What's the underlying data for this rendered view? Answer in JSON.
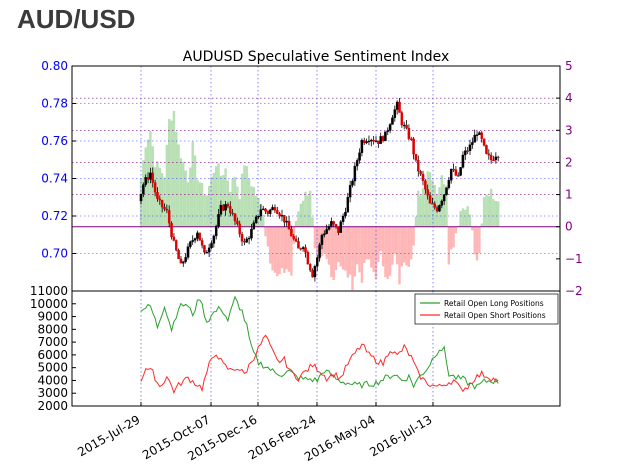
{
  "header": {
    "title": "AUD/USD"
  },
  "chart_data": {
    "type": "candlestick+bar+line",
    "title": "AUDUSD Speculative Sentiment Index",
    "colors": {
      "price_axis": "#0000ff",
      "ssi_axis": "#800080",
      "long_positions": "#2ca02c",
      "short_positions": "#ff2a2a",
      "ssi_positive": "#b9e0b5",
      "ssi_negative": "#ffb6b6",
      "grid": "#3333ff",
      "zero_line": "#800080"
    },
    "x_ticks": [
      "2015-Jul-29",
      "2015-Oct-07",
      "2015-Dec-16",
      "2016-Feb-24",
      "2016-May-04",
      "2016-Jul-13"
    ],
    "top_panel": {
      "price_ylim": [
        0.68,
        0.8
      ],
      "price_ticks": [
        "0.80",
        "0.78",
        "0.76",
        "0.74",
        "0.72",
        "0.70"
      ],
      "ssi_ylim": [
        -2,
        5
      ],
      "ssi_ticks": [
        "5",
        "4",
        "3",
        "2",
        "1",
        "0",
        "−1",
        "−2"
      ],
      "price_keypoints": [
        [
          0,
          0.728
        ],
        [
          2,
          0.737
        ],
        [
          5,
          0.743
        ],
        [
          8,
          0.728
        ],
        [
          12,
          0.722
        ],
        [
          15,
          0.705
        ],
        [
          18,
          0.693
        ],
        [
          22,
          0.705
        ],
        [
          25,
          0.712
        ],
        [
          28,
          0.699
        ],
        [
          32,
          0.71
        ],
        [
          35,
          0.724
        ],
        [
          38,
          0.726
        ],
        [
          42,
          0.714
        ],
        [
          45,
          0.705
        ],
        [
          48,
          0.712
        ],
        [
          52,
          0.724
        ],
        [
          55,
          0.722
        ],
        [
          58,
          0.725
        ],
        [
          62,
          0.718
        ],
        [
          65,
          0.71
        ],
        [
          68,
          0.702
        ],
        [
          70,
          0.705
        ],
        [
          72,
          0.696
        ],
        [
          74,
          0.689
        ],
        [
          76,
          0.698
        ],
        [
          78,
          0.71
        ],
        [
          82,
          0.716
        ],
        [
          85,
          0.712
        ],
        [
          88,
          0.724
        ],
        [
          92,
          0.745
        ],
        [
          95,
          0.76
        ],
        [
          98,
          0.762
        ],
        [
          102,
          0.76
        ],
        [
          105,
          0.763
        ],
        [
          108,
          0.774
        ],
        [
          110,
          0.779
        ],
        [
          112,
          0.77
        ],
        [
          116,
          0.76
        ],
        [
          118,
          0.748
        ],
        [
          121,
          0.738
        ],
        [
          124,
          0.726
        ],
        [
          127,
          0.724
        ],
        [
          130,
          0.732
        ],
        [
          133,
          0.745
        ],
        [
          136,
          0.74
        ],
        [
          138,
          0.752
        ],
        [
          141,
          0.757
        ],
        [
          144,
          0.765
        ],
        [
          146,
          0.76
        ],
        [
          148,
          0.752
        ],
        [
          150,
          0.75
        ],
        [
          152,
          0.753
        ]
      ],
      "ssi_keypoints": [
        [
          0,
          1.5
        ],
        [
          2,
          2.6
        ],
        [
          4,
          3.0
        ],
        [
          6,
          2.0
        ],
        [
          8,
          1.8
        ],
        [
          10,
          1.6
        ],
        [
          12,
          3.3
        ],
        [
          14,
          3.6
        ],
        [
          16,
          2.5
        ],
        [
          18,
          2.0
        ],
        [
          20,
          1.5
        ],
        [
          22,
          2.5
        ],
        [
          24,
          1.6
        ],
        [
          26,
          1.2
        ],
        [
          28,
          1.0
        ],
        [
          30,
          1.5
        ],
        [
          32,
          2.0
        ],
        [
          34,
          1.6
        ],
        [
          36,
          1.8
        ],
        [
          38,
          1.2
        ],
        [
          40,
          1.6
        ],
        [
          42,
          1.0
        ],
        [
          44,
          2.0
        ],
        [
          46,
          1.5
        ],
        [
          48,
          1.2
        ],
        [
          50,
          0.8
        ],
        [
          52,
          0.5
        ],
        [
          53,
          -0.2
        ],
        [
          55,
          -1.0
        ],
        [
          58,
          -1.6
        ],
        [
          62,
          -1.3
        ],
        [
          64,
          -1.5
        ],
        [
          66,
          0.2
        ],
        [
          68,
          0.8
        ],
        [
          70,
          1.0
        ],
        [
          72,
          1.2
        ],
        [
          74,
          -0.8
        ],
        [
          76,
          -1.2
        ],
        [
          78,
          -0.9
        ],
        [
          80,
          -1.2
        ],
        [
          82,
          -1.6
        ],
        [
          84,
          -1.0
        ],
        [
          86,
          -1.4
        ],
        [
          88,
          -1.5
        ],
        [
          90,
          -1.8
        ],
        [
          92,
          -1.2
        ],
        [
          94,
          -1.6
        ],
        [
          96,
          -1.0
        ],
        [
          98,
          -1.3
        ],
        [
          100,
          -1.5
        ],
        [
          102,
          -0.9
        ],
        [
          104,
          -1.4
        ],
        [
          106,
          -1.6
        ],
        [
          108,
          -0.9
        ],
        [
          110,
          -1.7
        ],
        [
          112,
          -1.0
        ],
        [
          114,
          -1.1
        ],
        [
          116,
          -0.6
        ],
        [
          118,
          1.0
        ],
        [
          120,
          1.2
        ],
        [
          122,
          1.8
        ],
        [
          124,
          1.6
        ],
        [
          126,
          1.1
        ],
        [
          128,
          1.5
        ],
        [
          130,
          1.4
        ],
        [
          131,
          -1.0
        ],
        [
          133,
          -0.5
        ],
        [
          136,
          0.5
        ],
        [
          138,
          0.7
        ],
        [
          140,
          0.4
        ],
        [
          142,
          -0.8
        ],
        [
          143,
          -1.2
        ],
        [
          144,
          -0.9
        ],
        [
          146,
          1.0
        ],
        [
          148,
          1.1
        ],
        [
          150,
          1.0
        ],
        [
          152,
          0.9
        ]
      ]
    },
    "bottom_panel": {
      "ylim": [
        2000,
        11000
      ],
      "y_ticks": [
        "11000",
        "10000",
        "9000",
        "8000",
        "7000",
        "6000",
        "5000",
        "4000",
        "3000",
        "2000"
      ],
      "legend": {
        "position": "top-right",
        "entries": [
          "Retail Open Long Positions",
          "Retail Open Short Positions"
        ]
      },
      "series": [
        {
          "name": "Retail Open Long Positions",
          "keypoints": [
            [
              0,
              9600
            ],
            [
              4,
              9800
            ],
            [
              7,
              8200
            ],
            [
              10,
              9900
            ],
            [
              13,
              8000
            ],
            [
              16,
              9700
            ],
            [
              19,
              10000
            ],
            [
              22,
              9200
            ],
            [
              25,
              10500
            ],
            [
              28,
              8600
            ],
            [
              31,
              9300
            ],
            [
              34,
              9700
            ],
            [
              37,
              8700
            ],
            [
              40,
              10400
            ],
            [
              43,
              9400
            ],
            [
              45,
              8200
            ],
            [
              47,
              6500
            ],
            [
              50,
              5400
            ],
            [
              54,
              5000
            ],
            [
              57,
              4600
            ],
            [
              60,
              4500
            ],
            [
              63,
              4700
            ],
            [
              66,
              4300
            ],
            [
              69,
              4100
            ],
            [
              72,
              4100
            ],
            [
              75,
              4000
            ],
            [
              78,
              4800
            ],
            [
              81,
              4400
            ],
            [
              84,
              4000
            ],
            [
              88,
              3800
            ],
            [
              92,
              3600
            ],
            [
              96,
              3700
            ],
            [
              100,
              3800
            ],
            [
              104,
              4200
            ],
            [
              108,
              4500
            ],
            [
              111,
              4000
            ],
            [
              114,
              4300
            ],
            [
              116,
              3600
            ],
            [
              119,
              4400
            ],
            [
              122,
              5000
            ],
            [
              125,
              6000
            ],
            [
              127,
              6500
            ],
            [
              129,
              6400
            ],
            [
              131,
              4500
            ],
            [
              134,
              4200
            ],
            [
              137,
              4100
            ],
            [
              140,
              3700
            ],
            [
              143,
              3500
            ],
            [
              146,
              3900
            ],
            [
              149,
              4000
            ],
            [
              152,
              3900
            ]
          ]
        },
        {
          "name": "Retail Open Short Positions",
          "keypoints": [
            [
              0,
              4000
            ],
            [
              2,
              5000
            ],
            [
              5,
              4600
            ],
            [
              8,
              3500
            ],
            [
              11,
              4300
            ],
            [
              14,
              3200
            ],
            [
              17,
              3800
            ],
            [
              20,
              4200
            ],
            [
              23,
              3800
            ],
            [
              26,
              3400
            ],
            [
              29,
              5200
            ],
            [
              32,
              6200
            ],
            [
              35,
              5200
            ],
            [
              38,
              4800
            ],
            [
              41,
              5000
            ],
            [
              44,
              4500
            ],
            [
              47,
              5500
            ],
            [
              50,
              6500
            ],
            [
              53,
              7500
            ],
            [
              55,
              6600
            ],
            [
              58,
              5500
            ],
            [
              61,
              5600
            ],
            [
              64,
              4600
            ],
            [
              67,
              4200
            ],
            [
              70,
              4700
            ],
            [
              73,
              5200
            ],
            [
              76,
              4800
            ],
            [
              79,
              4200
            ],
            [
              82,
              4500
            ],
            [
              85,
              4200
            ],
            [
              88,
              5300
            ],
            [
              91,
              6100
            ],
            [
              94,
              6800
            ],
            [
              97,
              6000
            ],
            [
              100,
              5600
            ],
            [
              103,
              5300
            ],
            [
              106,
              6500
            ],
            [
              109,
              5900
            ],
            [
              112,
              6600
            ],
            [
              115,
              5800
            ],
            [
              118,
              4500
            ],
            [
              121,
              3900
            ],
            [
              124,
              3600
            ],
            [
              127,
              3500
            ],
            [
              130,
              3800
            ],
            [
              133,
              4000
            ],
            [
              136,
              3300
            ],
            [
              139,
              3500
            ],
            [
              142,
              4200
            ],
            [
              145,
              4500
            ],
            [
              148,
              4300
            ],
            [
              152,
              3900
            ]
          ]
        }
      ]
    }
  }
}
